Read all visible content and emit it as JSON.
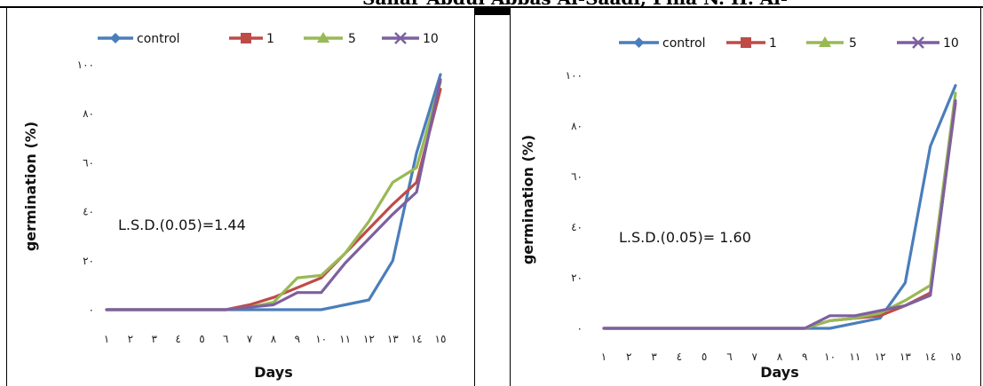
{
  "header": {
    "text": "Sahar Abdul Abbas Al-Saadi, Pina N. H. Al-"
  },
  "chart_data": [
    {
      "type": "line",
      "xlabel": "Days",
      "ylabel": "germination (%)",
      "categories": [
        "١",
        "٢",
        "٣",
        "٤",
        "٥",
        "٦",
        "٧",
        "٨",
        "٩",
        "١٠",
        "١١",
        "١٢",
        "١٣",
        "١٤",
        "١٥"
      ],
      "yticks": [
        "٠",
        "٢٠",
        "٤٠",
        "٦٠",
        "٨٠",
        "١٠٠"
      ],
      "ylim": [
        0,
        100
      ],
      "annotation": "L.S.D.(0.05)=1.44",
      "legend_position": "top",
      "series": [
        {
          "name": "control",
          "color": "#4a7ebb",
          "marker": "diamond",
          "values": [
            0,
            0,
            0,
            0,
            0,
            0,
            0,
            0,
            0,
            0,
            2,
            4,
            20,
            64,
            96
          ]
        },
        {
          "name": "1",
          "color": "#be4b48",
          "marker": "square",
          "values": [
            0,
            0,
            0,
            0,
            0,
            0,
            2,
            5,
            9,
            13,
            23,
            33,
            43,
            52,
            90
          ]
        },
        {
          "name": "5",
          "color": "#98b954",
          "marker": "triangle",
          "values": [
            0,
            0,
            0,
            0,
            0,
            0,
            1,
            3,
            13,
            14,
            23,
            36,
            52,
            58,
            93
          ]
        },
        {
          "name": "10",
          "color": "#7d60a0",
          "marker": "x",
          "values": [
            0,
            0,
            0,
            0,
            0,
            0,
            1,
            2,
            7,
            7,
            19,
            29,
            39,
            48,
            94
          ]
        }
      ]
    },
    {
      "type": "line",
      "xlabel": "Days",
      "ylabel": "germination (%)",
      "categories": [
        "١",
        "٢",
        "٣",
        "٤",
        "٥",
        "٦",
        "٧",
        "٨",
        "٩",
        "١٠",
        "١١",
        "١٢",
        "١٣",
        "١٤",
        "١٥"
      ],
      "yticks": [
        "٠",
        "٢٠",
        "٤٠",
        "٦٠",
        "٨٠",
        "١٠٠"
      ],
      "ylim": [
        0,
        100
      ],
      "annotation": "L.S.D.(0.05)= 1.60",
      "legend_position": "top",
      "series": [
        {
          "name": "control",
          "color": "#4a7ebb",
          "marker": "diamond",
          "values": [
            0,
            0,
            0,
            0,
            0,
            0,
            0,
            0,
            0,
            0,
            2,
            4,
            18,
            72,
            96
          ]
        },
        {
          "name": "1",
          "color": "#be4b48",
          "marker": "square",
          "values": [
            0,
            0,
            0,
            0,
            0,
            0,
            0,
            0,
            0,
            3,
            4,
            5,
            9,
            14,
            89
          ]
        },
        {
          "name": "5",
          "color": "#98b954",
          "marker": "triangle",
          "values": [
            0,
            0,
            0,
            0,
            0,
            0,
            0,
            0,
            0,
            3,
            4,
            6,
            11,
            17,
            93
          ]
        },
        {
          "name": "10",
          "color": "#7d60a0",
          "marker": "x",
          "values": [
            0,
            0,
            0,
            0,
            0,
            0,
            0,
            0,
            0,
            5,
            5,
            7,
            9,
            13,
            90
          ]
        }
      ]
    }
  ]
}
